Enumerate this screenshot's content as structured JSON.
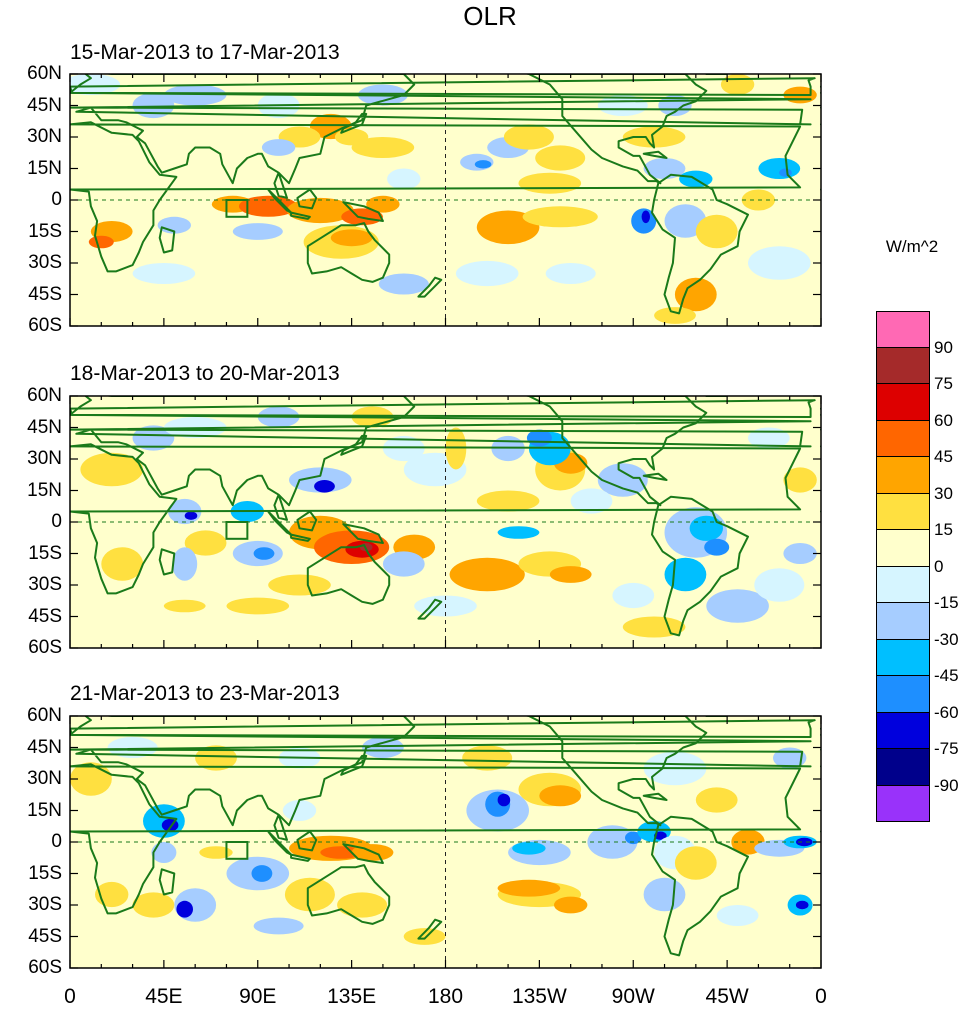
{
  "title": "OLR",
  "panels": [
    {
      "label": "15-Mar-2013 to 17-Mar-2013"
    },
    {
      "label": "18-Mar-2013 to 20-Mar-2013"
    },
    {
      "label": "21-Mar-2013 to 23-Mar-2013"
    }
  ],
  "chart_data": {
    "type": "heatmap",
    "title": "OLR",
    "subtitles": [
      "15-Mar-2013 to 17-Mar-2013",
      "18-Mar-2013 to 20-Mar-2013",
      "21-Mar-2013 to 23-Mar-2013"
    ],
    "lat_ticks": [
      "60N",
      "45N",
      "30N",
      "15N",
      "0",
      "15S",
      "30S",
      "45S",
      "60S"
    ],
    "lat_values": [
      60,
      45,
      30,
      15,
      0,
      -15,
      -30,
      -45,
      -60
    ],
    "lon_ticks": [
      "0",
      "45E",
      "90E",
      "135E",
      "180",
      "135W",
      "90W",
      "45W",
      "0"
    ],
    "lon_values": [
      0,
      45,
      90,
      135,
      180,
      225,
      270,
      315,
      360
    ],
    "xlim": [
      0,
      360
    ],
    "ylim": [
      -60,
      60
    ],
    "colorbar": {
      "units": "W/m^2",
      "levels": [
        "90",
        "75",
        "60",
        "45",
        "30",
        "15",
        "0",
        "-15",
        "-30",
        "-45",
        "-60",
        "-75",
        "-90"
      ],
      "colors": [
        "#ff69b4",
        "#a52a2a",
        "#dd0000",
        "#ff6600",
        "#ffa500",
        "#ffe040",
        "#ffffcc",
        "#d6f5ff",
        "#a6cdff",
        "#00bfff",
        "#1e8fff",
        "#0000dd",
        "#00008b",
        "#9932fa"
      ]
    },
    "features": [
      "coastlines",
      "equator-dashed",
      "dateline-dashed",
      "box-near-80E-5S"
    ]
  }
}
